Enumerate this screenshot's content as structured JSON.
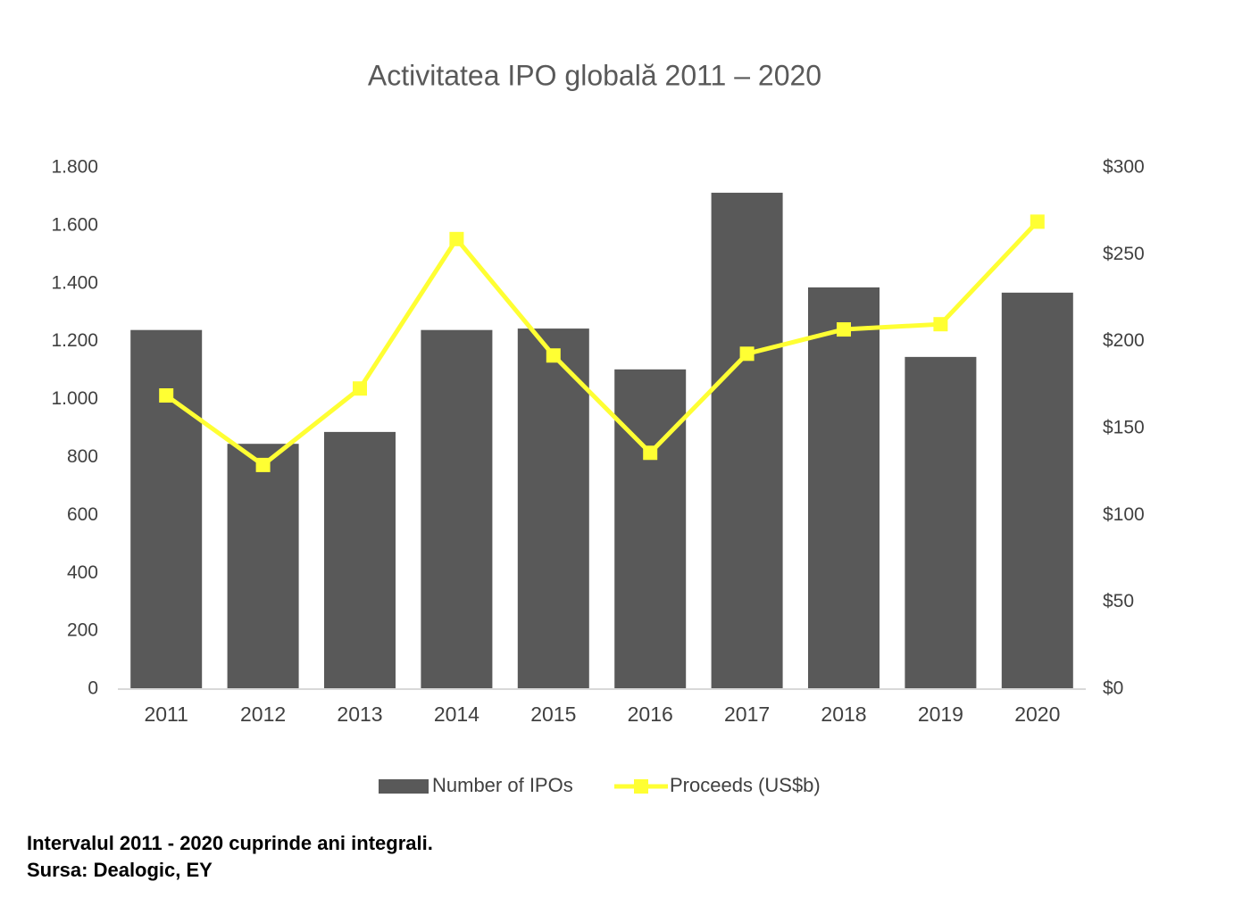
{
  "chart_data": {
    "type": "bar-line",
    "title": "Activitatea IPO globală 2011 – 2020",
    "categories": [
      "2011",
      "2012",
      "2013",
      "2014",
      "2015",
      "2016",
      "2017",
      "2018",
      "2019",
      "2020"
    ],
    "series": [
      {
        "name": "Number of IPOs",
        "type": "bar",
        "color": "#595959",
        "values": [
          1240,
          847,
          888,
          1240,
          1245,
          1104,
          1714,
          1387,
          1147,
          1369
        ]
      },
      {
        "name": "Proceeds (US$b)",
        "type": "line",
        "axis": "y2",
        "color": "#ffff33",
        "values": [
          169,
          129,
          173,
          259,
          192,
          136,
          193,
          207,
          210,
          269
        ]
      }
    ],
    "ylim": [
      0,
      1800
    ],
    "yticks": [
      0,
      200,
      400,
      600,
      800,
      {
        "value": 1000,
        "label": "1.000"
      },
      {
        "value": 1200,
        "label": "1.200"
      },
      {
        "value": 1400,
        "label": "1.400"
      },
      {
        "value": 1600,
        "label": "1.600"
      },
      {
        "value": 1800,
        "label": "1.800"
      }
    ],
    "y2lim": [
      0,
      300
    ],
    "y2ticks": [
      {
        "value": 0,
        "label": "$0"
      },
      {
        "value": 50,
        "label": "$50"
      },
      {
        "value": 100,
        "label": "$100"
      },
      {
        "value": 150,
        "label": "$150"
      },
      {
        "value": 200,
        "label": "$200"
      },
      {
        "value": 250,
        "label": "$250"
      },
      {
        "value": 300,
        "label": "$300"
      }
    ],
    "grid": false,
    "legend": "bottom",
    "notes": [
      "Intervalul 2011 - 2020 cuprinde ani integrali.",
      "Sursa: Dealogic, EY"
    ]
  }
}
